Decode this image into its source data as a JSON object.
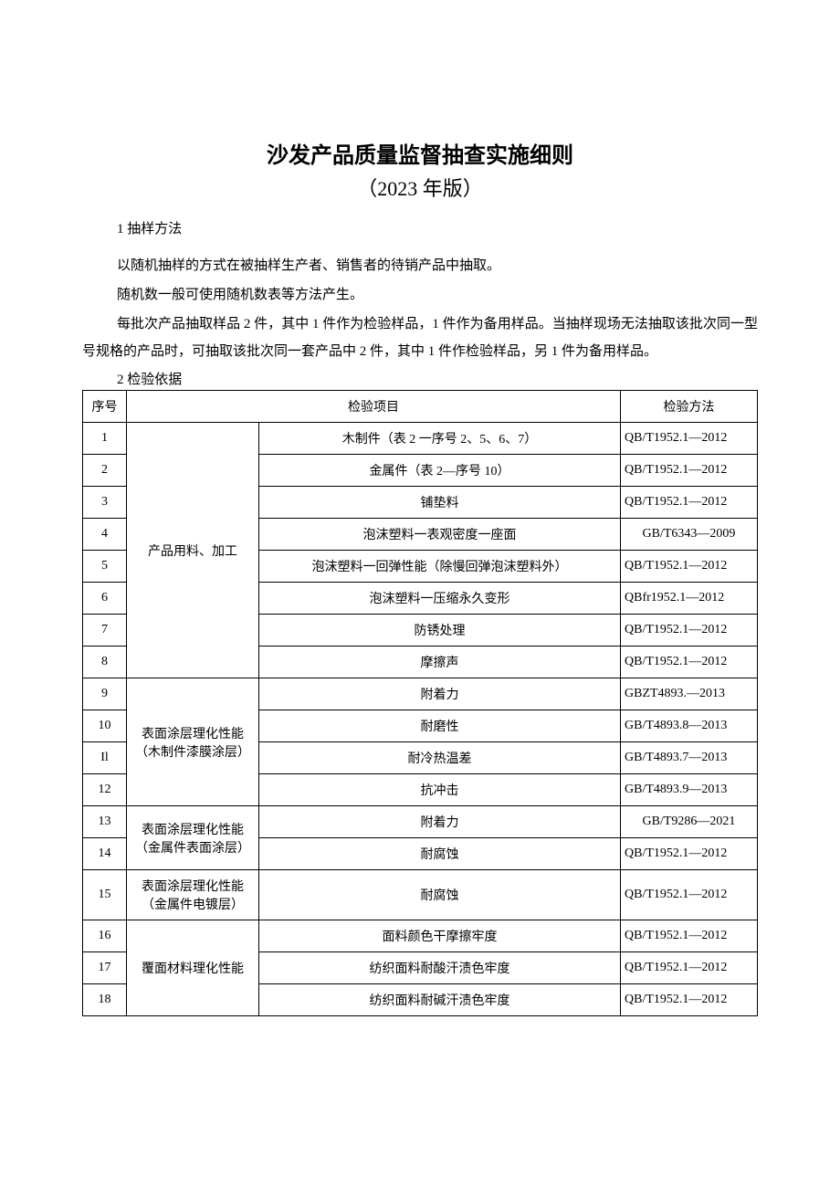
{
  "doc": {
    "title": "沙发产品质量监督抽查实施细则",
    "subtitle": "（2023 年版）",
    "section1_heading": "1 抽样方法",
    "paragraphs": [
      "以随机抽样的方式在被抽样生产者、销售者的待销产品中抽取。",
      "随机数一般可使用随机数表等方法产生。",
      "每批次产品抽取样品 2 件，其中 1 件作为检验样品，1 件作为备用样品。当抽样现场无法抽取该批次同一型号规格的产品时，可抽取该批次同一套产品中 2 件，其中 1 件作检验样品，另 1 件为备用样品。"
    ],
    "section2_heading": "2 检验依据"
  },
  "table": {
    "headers": {
      "seq": "序号",
      "item": "检验项目",
      "method": "检验方法"
    },
    "categories": {
      "c1": "产品用料、加工",
      "c2": "表面涂层理化性能（木制件漆膜涂层）",
      "c3": "表面涂层理化性能（金属件表面涂层）",
      "c4": "表面涂层理化性能（金属件电镀层）",
      "c5": "覆面材料理化性能"
    },
    "rows": [
      {
        "seq": "1",
        "item": "木制件（表 2 一序号 2、5、6、7）",
        "method": "QB/T1952.1—2012",
        "m_align": "left",
        "i_align": "center"
      },
      {
        "seq": "2",
        "item": "金属件（表 2—序号 10）",
        "method": "QB/T1952.1—2012",
        "m_align": "left",
        "i_align": "center"
      },
      {
        "seq": "3",
        "item": "铺垫料",
        "method": "QB/T1952.1—2012",
        "m_align": "left",
        "i_align": "center"
      },
      {
        "seq": "4",
        "item": "泡沫塑料一表观密度一座面",
        "method": "GB/T6343—2009",
        "m_align": "center",
        "i_align": "center"
      },
      {
        "seq": "5",
        "item": "泡沫塑料一回弹性能（除慢回弹泡沫塑料外）",
        "method": "QB/T1952.1—2012",
        "m_align": "left",
        "i_align": "center"
      },
      {
        "seq": "6",
        "item": "泡沫塑料一压缩永久变形",
        "method": "QBfr1952.1—2012",
        "m_align": "left",
        "i_align": "center"
      },
      {
        "seq": "7",
        "item": "防锈处理",
        "method": "QB/T1952.1—2012",
        "m_align": "left",
        "i_align": "center"
      },
      {
        "seq": "8",
        "item": "摩擦声",
        "method": "QB/T1952.1—2012",
        "m_align": "left",
        "i_align": "center"
      },
      {
        "seq": "9",
        "item": "附着力",
        "method": "GBZT4893.—2013",
        "m_align": "left",
        "i_align": "center"
      },
      {
        "seq": "10",
        "item": "耐磨性",
        "method": "GB/T4893.8—2013",
        "m_align": "left",
        "i_align": "center"
      },
      {
        "seq": "Il",
        "item": "耐冷热温差",
        "method": "GB/T4893.7—2013",
        "m_align": "left",
        "i_align": "center"
      },
      {
        "seq": "12",
        "item": "抗冲击",
        "method": "GB/T4893.9—2013",
        "m_align": "left",
        "i_align": "center"
      },
      {
        "seq": "13",
        "item": "附着力",
        "method": "GB/T9286—2021",
        "m_align": "center",
        "i_align": "center"
      },
      {
        "seq": "14",
        "item": "耐腐蚀",
        "method": "QB/T1952.1—2012",
        "m_align": "left",
        "i_align": "center"
      },
      {
        "seq": "15",
        "item": "耐腐蚀",
        "method": "QB/T1952.1—2012",
        "m_align": "left",
        "i_align": "center"
      },
      {
        "seq": "16",
        "item": "面料颜色干摩擦牢度",
        "method": "QB/T1952.1—2012",
        "m_align": "left",
        "i_align": "center"
      },
      {
        "seq": "17",
        "item": "纺织面料耐酸汗渍色牢度",
        "method": "QB/T1952.1—2012",
        "m_align": "left",
        "i_align": "center"
      },
      {
        "seq": "18",
        "item": "纺织面料耐碱汗渍色牢度",
        "method": "QB/T1952.1—2012",
        "m_align": "left",
        "i_align": "center"
      }
    ]
  }
}
